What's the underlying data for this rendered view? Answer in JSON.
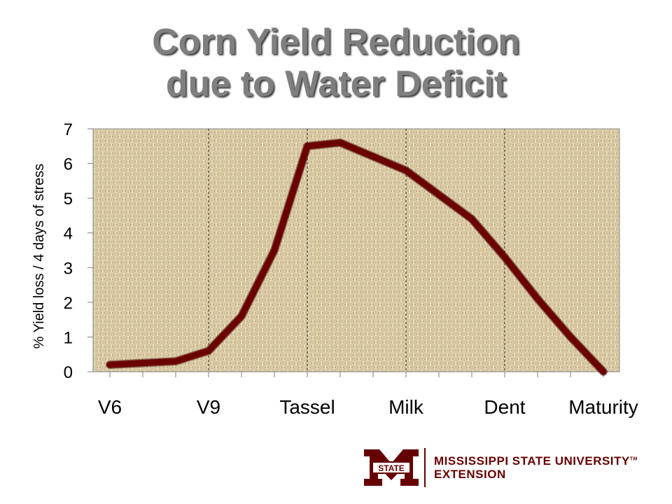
{
  "title": {
    "line1": "Corn Yield Reduction",
    "line2": "due to Water Deficit"
  },
  "chart_data": {
    "type": "line",
    "ylabel": "% Yield loss / 4 days of stress",
    "ylim": [
      0,
      7
    ],
    "yticks": [
      0,
      1,
      2,
      3,
      4,
      5,
      6,
      7
    ],
    "grid": "vertical dashed lines at labeled stages",
    "stage_labels": [
      "V6",
      "V9",
      "Tassel",
      "Milk",
      "Dent",
      "Maturity"
    ],
    "x": [
      0,
      1,
      2,
      3,
      4,
      5,
      6,
      7,
      8,
      9,
      10,
      11,
      12,
      13,
      14,
      15
    ],
    "values": [
      0.2,
      0.25,
      0.3,
      0.6,
      1.6,
      3.5,
      6.5,
      6.6,
      6.2,
      5.8,
      5.1,
      4.4,
      3.3,
      2.1,
      1.0,
      0.0
    ],
    "line_color": "#6b0000",
    "plot_background": "#d9c9a3"
  },
  "logo": {
    "mark_text": "STATE",
    "line1": "MISSISSIPPI STATE UNIVERSITY",
    "tm": "TM",
    "line2": "EXTENSION",
    "color": "#660000"
  }
}
